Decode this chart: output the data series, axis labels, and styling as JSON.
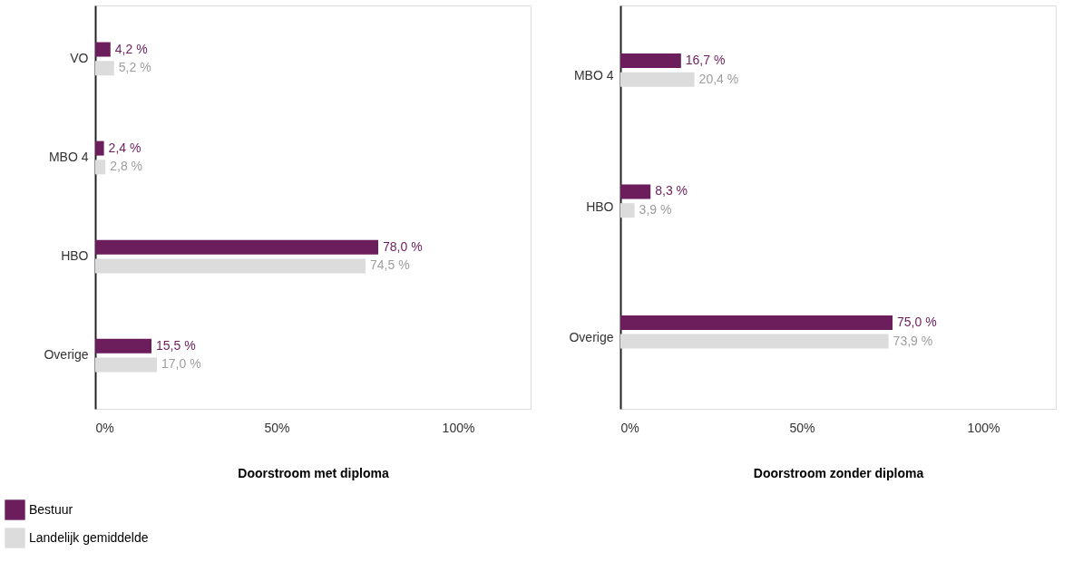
{
  "chart_data": [
    {
      "type": "bar",
      "orientation": "horizontal",
      "xlabel": "Doorstroom met diploma",
      "categories": [
        "VO",
        "MBO 4",
        "HBO",
        "Overige"
      ],
      "series": [
        {
          "name": "Bestuur",
          "color": "#6b1d5c",
          "values": [
            4.2,
            2.4,
            78.0,
            15.5
          ],
          "value_labels": [
            "4,2 %",
            "2,4 %",
            "78,0 %",
            "15,5 %"
          ]
        },
        {
          "name": "Landelijk gemiddelde",
          "color": "#dcdcdc",
          "values": [
            5.2,
            2.8,
            74.5,
            17.0
          ],
          "value_labels": [
            "5,2 %",
            "2,8 %",
            "74,5 %",
            "17,0 %"
          ]
        }
      ],
      "xlim": [
        0,
        120
      ],
      "xticks": [
        {
          "value": 0,
          "label": "0%"
        },
        {
          "value": 50,
          "label": "50%"
        },
        {
          "value": 100,
          "label": "100%"
        }
      ],
      "grid": false,
      "legend": "bottom left"
    },
    {
      "type": "bar",
      "orientation": "horizontal",
      "xlabel": "Doorstroom zonder diploma",
      "categories": [
        "MBO 4",
        "HBO",
        "Overige"
      ],
      "series": [
        {
          "name": "Bestuur",
          "color": "#6b1d5c",
          "values": [
            16.7,
            8.3,
            75.0
          ],
          "value_labels": [
            "16,7 %",
            "8,3 %",
            "75,0 %"
          ]
        },
        {
          "name": "Landelijk gemiddelde",
          "color": "#dcdcdc",
          "values": [
            20.4,
            3.9,
            73.9
          ],
          "value_labels": [
            "20,4 %",
            "3,9 %",
            "73,9 %"
          ]
        }
      ],
      "xlim": [
        0,
        120
      ],
      "xticks": [
        {
          "value": 0,
          "label": "0%"
        },
        {
          "value": 50,
          "label": "50%"
        },
        {
          "value": 100,
          "label": "100%"
        }
      ],
      "grid": false,
      "legend": "bottom left"
    }
  ]
}
